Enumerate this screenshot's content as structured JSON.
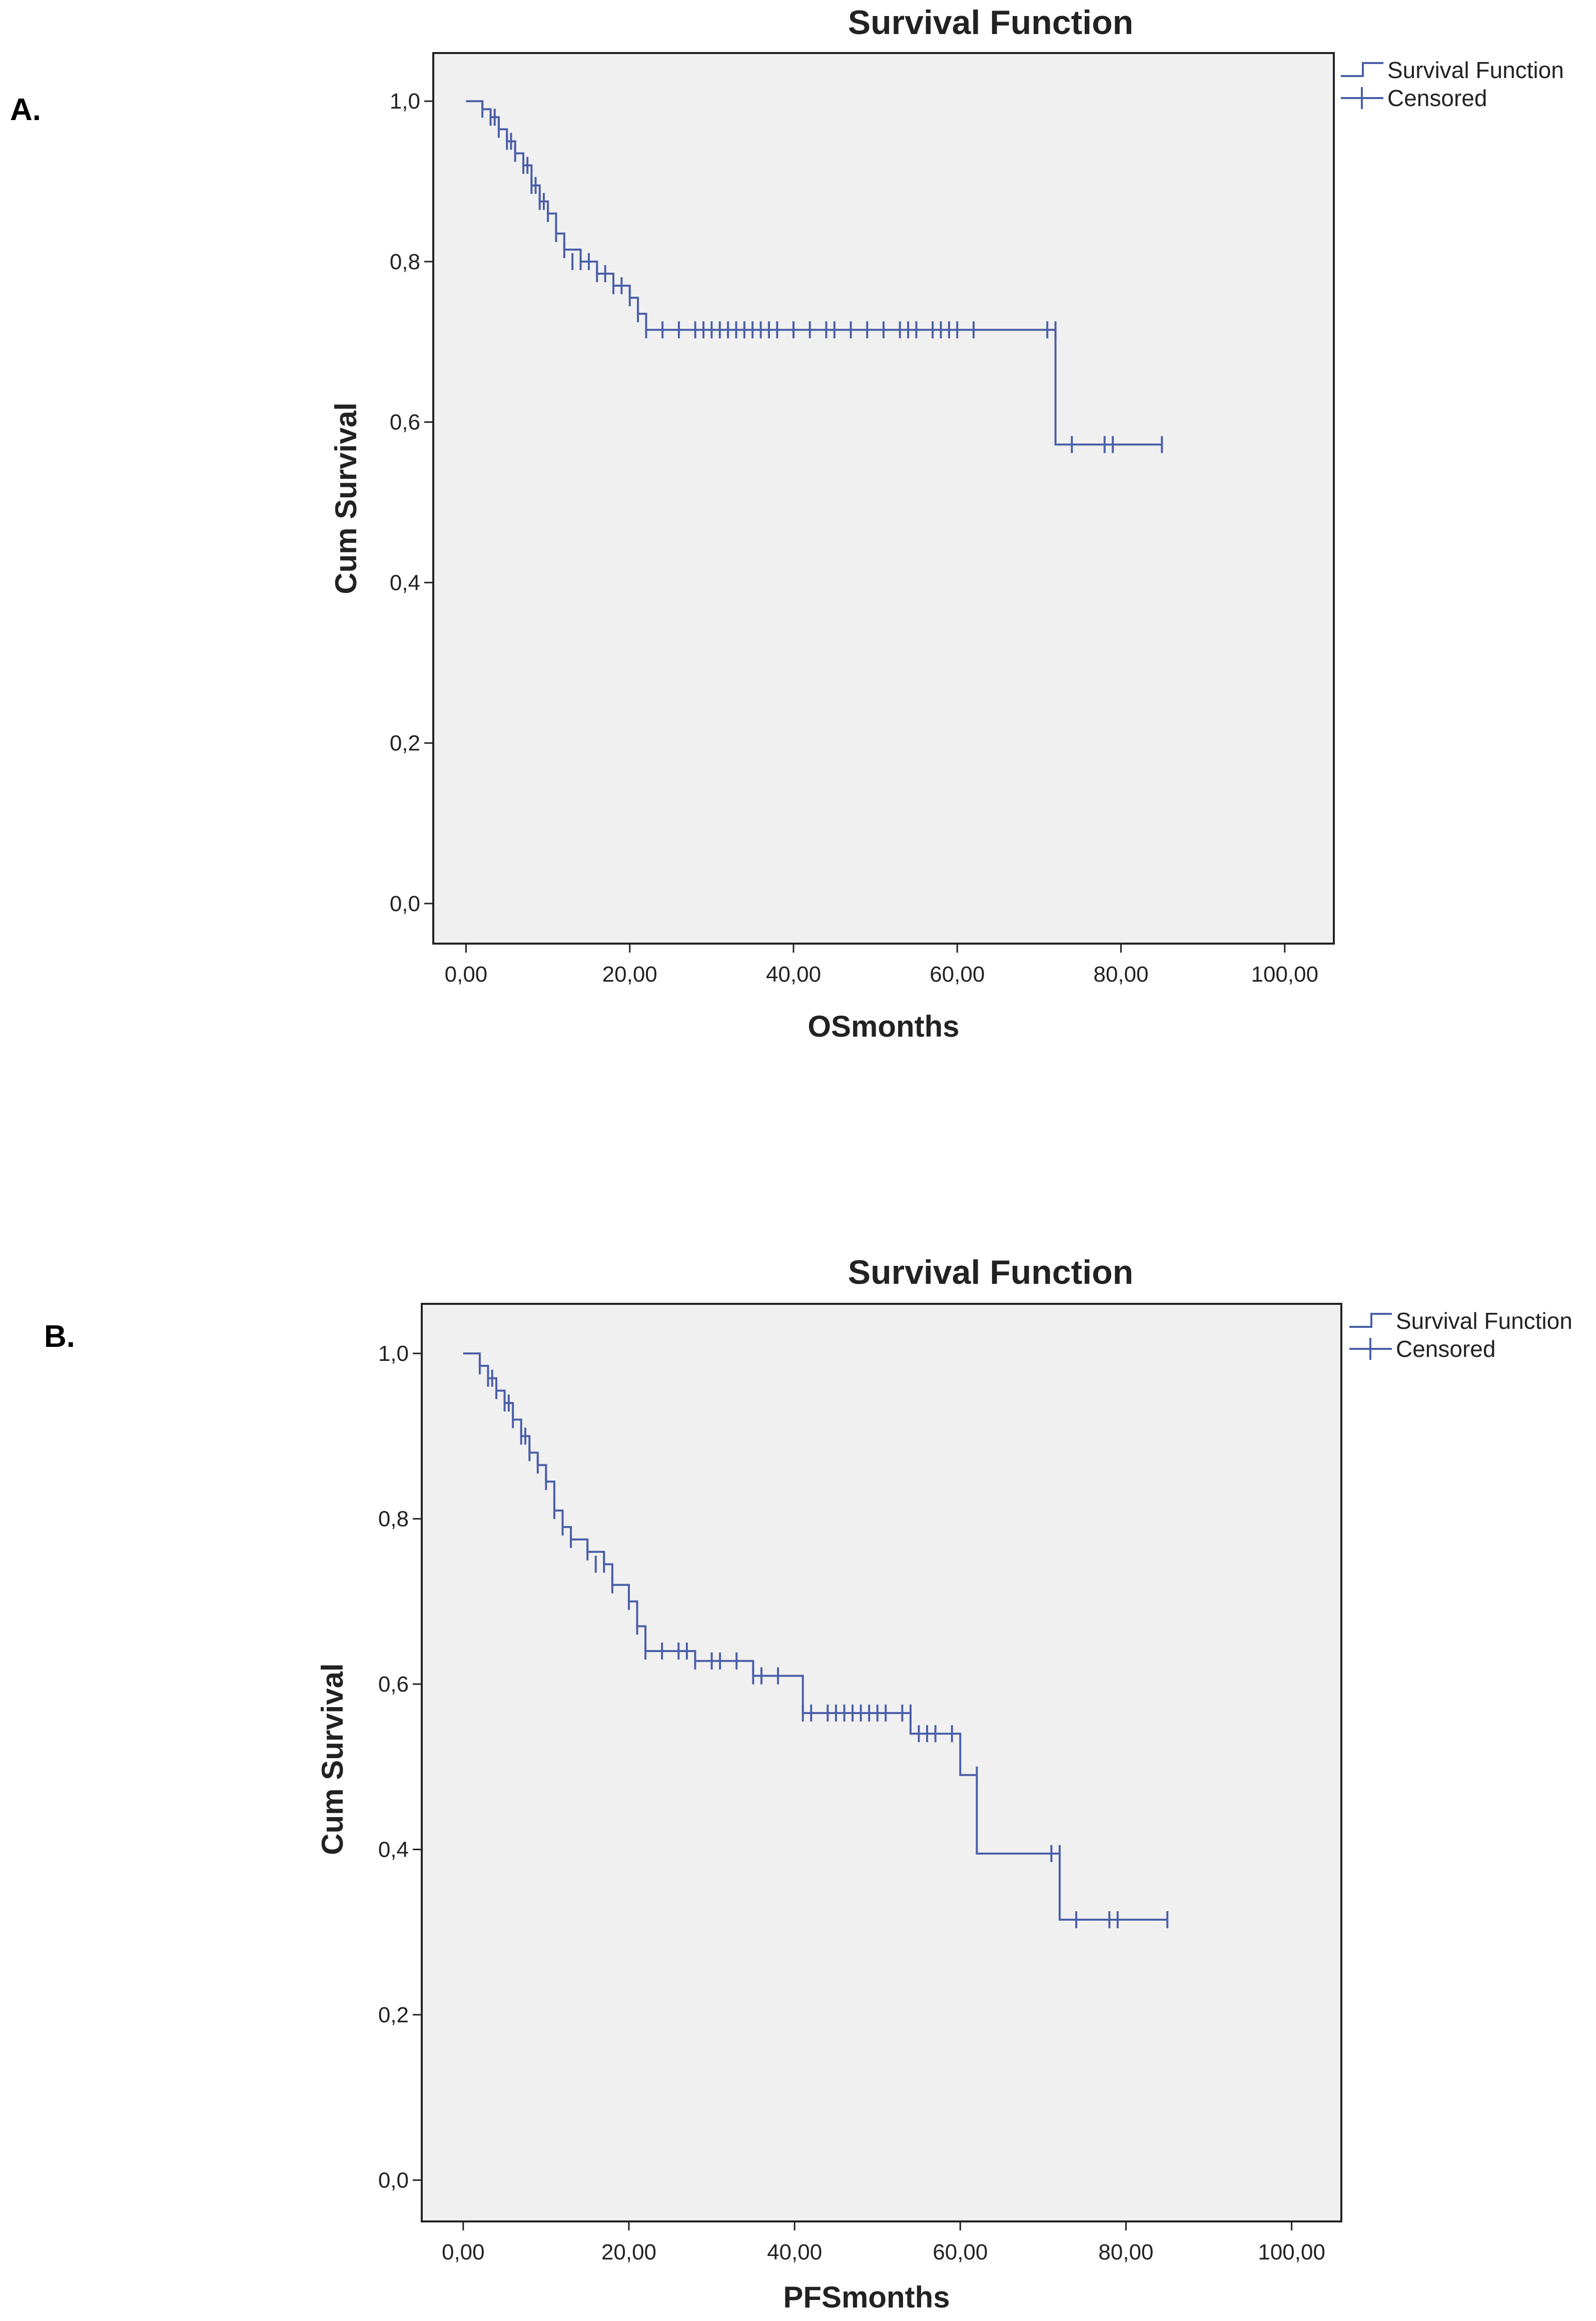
{
  "colors": {
    "line": "#4a5ea8",
    "plot_bg": "#f0f0f0",
    "axis": "#222222"
  },
  "chart_data": [
    {
      "type": "line",
      "panel_label": "A.",
      "title": "Survival Function",
      "xlabel": "OSmonths",
      "ylabel": "Cum Survival",
      "xlim": [
        -4,
        106
      ],
      "ylim": [
        -0.05,
        1.06
      ],
      "xticks": [
        0,
        20,
        40,
        60,
        80,
        100
      ],
      "xtick_labels": [
        "0,00",
        "20,00",
        "40,00",
        "60,00",
        "80,00",
        "100,00"
      ],
      "yticks": [
        0,
        0.2,
        0.4,
        0.6,
        0.8,
        1.0
      ],
      "ytick_labels": [
        "0,0",
        "0,2",
        "0,4",
        "0,6",
        "0,8",
        "1,0"
      ],
      "legend": [
        "Survival Function",
        "Censored"
      ],
      "legend_position": "top-right outside",
      "series": [
        {
          "name": "Survival Function",
          "x": [
            0,
            2,
            3,
            4,
            5,
            6,
            7,
            8,
            9,
            10,
            11,
            12,
            14,
            16,
            18,
            20,
            21,
            22,
            72,
            85
          ],
          "y": [
            1.0,
            0.99,
            0.98,
            0.965,
            0.95,
            0.935,
            0.92,
            0.895,
            0.875,
            0.86,
            0.835,
            0.815,
            0.8,
            0.785,
            0.77,
            0.755,
            0.735,
            0.715,
            0.572,
            0.572
          ]
        }
      ],
      "censored": {
        "x": [
          2,
          3,
          3.5,
          4,
          5,
          5.5,
          6,
          7,
          7.5,
          8,
          8.5,
          9,
          9.5,
          10,
          11,
          12,
          13,
          14,
          15,
          16,
          17,
          18,
          19,
          20,
          21,
          22,
          24,
          26,
          28,
          29,
          30,
          31,
          32,
          33,
          34,
          35,
          36,
          37,
          38,
          40,
          42,
          44,
          45,
          47,
          49,
          51,
          53,
          54,
          55,
          57,
          58,
          59,
          60,
          62,
          71,
          72,
          74,
          78,
          79,
          85
        ],
        "y": [
          0.99,
          0.98,
          0.98,
          0.965,
          0.95,
          0.95,
          0.935,
          0.92,
          0.92,
          0.895,
          0.895,
          0.875,
          0.875,
          0.86,
          0.835,
          0.815,
          0.8,
          0.8,
          0.8,
          0.785,
          0.785,
          0.77,
          0.77,
          0.755,
          0.735,
          0.715,
          0.715,
          0.715,
          0.715,
          0.715,
          0.715,
          0.715,
          0.715,
          0.715,
          0.715,
          0.715,
          0.715,
          0.715,
          0.715,
          0.715,
          0.715,
          0.715,
          0.715,
          0.715,
          0.715,
          0.715,
          0.715,
          0.715,
          0.715,
          0.715,
          0.715,
          0.715,
          0.715,
          0.715,
          0.715,
          0.715,
          0.572,
          0.572,
          0.572,
          0.572
        ]
      }
    },
    {
      "type": "line",
      "panel_label": "B.",
      "title": "Survival Function",
      "xlabel": "PFSmonths",
      "ylabel": "Cum Survival",
      "xlim": [
        -5,
        106
      ],
      "ylim": [
        -0.05,
        1.06
      ],
      "xticks": [
        0,
        20,
        40,
        60,
        80,
        100
      ],
      "xtick_labels": [
        "0,00",
        "20,00",
        "40,00",
        "60,00",
        "80,00",
        "100,00"
      ],
      "yticks": [
        0,
        0.2,
        0.4,
        0.6,
        0.8,
        1.0
      ],
      "ytick_labels": [
        "0,0",
        "0,2",
        "0,4",
        "0,6",
        "0,8",
        "1,0"
      ],
      "legend": [
        "Survival Function",
        "Censored"
      ],
      "legend_position": "top-right outside",
      "series": [
        {
          "name": "Survival Function",
          "x": [
            0,
            2,
            3,
            4,
            5,
            6,
            7,
            8,
            9,
            10,
            11,
            12,
            13,
            15,
            17,
            18,
            20,
            21,
            22,
            28,
            35,
            41,
            54,
            60,
            62,
            72,
            85
          ],
          "y": [
            1.0,
            0.985,
            0.97,
            0.955,
            0.94,
            0.92,
            0.9,
            0.88,
            0.865,
            0.845,
            0.81,
            0.79,
            0.775,
            0.76,
            0.745,
            0.72,
            0.7,
            0.67,
            0.64,
            0.628,
            0.61,
            0.565,
            0.54,
            0.49,
            0.395,
            0.315,
            0.315
          ]
        }
      ],
      "censored": {
        "x": [
          2,
          3,
          3.5,
          4,
          5,
          5.5,
          6,
          7,
          7.5,
          8,
          9,
          10,
          11,
          12,
          13,
          15,
          16,
          17,
          18,
          20,
          21,
          22,
          24,
          26,
          27,
          28,
          30,
          31,
          33,
          35,
          36,
          38,
          41,
          42,
          44,
          45,
          46,
          47,
          48,
          49,
          50,
          51,
          53,
          54,
          55,
          56,
          57,
          59,
          62,
          71,
          72,
          74,
          78,
          79,
          85
        ],
        "y": [
          0.985,
          0.97,
          0.97,
          0.955,
          0.94,
          0.94,
          0.92,
          0.9,
          0.9,
          0.88,
          0.865,
          0.845,
          0.81,
          0.79,
          0.775,
          0.76,
          0.745,
          0.745,
          0.72,
          0.7,
          0.67,
          0.64,
          0.64,
          0.64,
          0.64,
          0.628,
          0.628,
          0.628,
          0.628,
          0.61,
          0.61,
          0.61,
          0.565,
          0.565,
          0.565,
          0.565,
          0.565,
          0.565,
          0.565,
          0.565,
          0.565,
          0.565,
          0.565,
          0.565,
          0.54,
          0.54,
          0.54,
          0.54,
          0.49,
          0.395,
          0.395,
          0.315,
          0.315,
          0.315,
          0.315
        ]
      }
    }
  ]
}
